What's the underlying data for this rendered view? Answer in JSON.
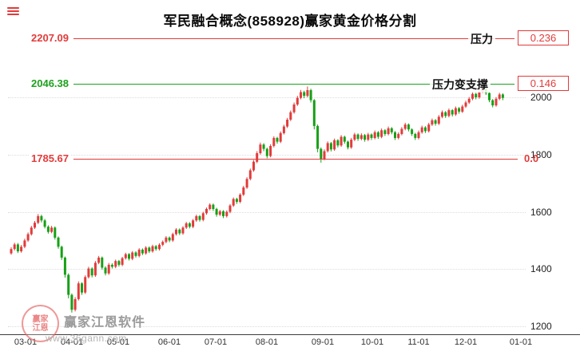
{
  "header": {
    "title": "军民融合概念(858928)赢家黄金价格分割"
  },
  "watermark": {
    "brand": "赢家江恩软件",
    "url": "www.36gann.com",
    "seal_top": "赢家",
    "seal_bottom": "江恩"
  },
  "chart_data": {
    "type": "candlestick",
    "title": "军民融合概念(858928)赢家黄金价格分割",
    "up_color": "#e23b3b",
    "down_color": "#16a016",
    "grid": true,
    "legend_position": "none",
    "ylim": [
      1170,
      2260
    ],
    "y_ticks": [
      "2000",
      "1800",
      "1600",
      "1400",
      "1200"
    ],
    "x_ticks": [
      "03-01",
      "04-01",
      "05-01",
      "06-01",
      "07-01",
      "08-01",
      "09-01",
      "10-01",
      "11-01",
      "12-01",
      "01-01"
    ],
    "levels": [
      {
        "price_label": "2207.09",
        "price": 2207.09,
        "side_label": "压力",
        "badge": "0.236",
        "color": "#e23b3b",
        "boxed": true
      },
      {
        "price_label": "2046.38",
        "price": 2046.38,
        "side_label": "压力变支撑",
        "badge": "0.146",
        "color": "#1da11d",
        "boxed": true
      },
      {
        "price_label": "1785.67",
        "price": 1785.67,
        "side_label": "",
        "badge": "0.0",
        "color": "#e23b3b",
        "boxed": false
      }
    ],
    "candles": [
      [
        1455,
        1476,
        1450,
        1470
      ],
      [
        1470,
        1492,
        1465,
        1486
      ],
      [
        1486,
        1491,
        1456,
        1462
      ],
      [
        1462,
        1484,
        1457,
        1478
      ],
      [
        1478,
        1506,
        1473,
        1500
      ],
      [
        1500,
        1528,
        1495,
        1522
      ],
      [
        1522,
        1551,
        1517,
        1545
      ],
      [
        1545,
        1568,
        1540,
        1562
      ],
      [
        1562,
        1592,
        1557,
        1585
      ],
      [
        1585,
        1590,
        1563,
        1570
      ],
      [
        1570,
        1575,
        1542,
        1548
      ],
      [
        1548,
        1553,
        1524,
        1530
      ],
      [
        1530,
        1551,
        1525,
        1545
      ],
      [
        1545,
        1549,
        1503,
        1510
      ],
      [
        1510,
        1514,
        1471,
        1478
      ],
      [
        1478,
        1482,
        1432,
        1440
      ],
      [
        1440,
        1444,
        1370,
        1380
      ],
      [
        1380,
        1385,
        1298,
        1310
      ],
      [
        1310,
        1315,
        1248,
        1258
      ],
      [
        1258,
        1302,
        1252,
        1295
      ],
      [
        1295,
        1357,
        1290,
        1350
      ],
      [
        1350,
        1354,
        1310,
        1318
      ],
      [
        1318,
        1378,
        1313,
        1372
      ],
      [
        1372,
        1408,
        1367,
        1402
      ],
      [
        1402,
        1406,
        1371,
        1378
      ],
      [
        1378,
        1428,
        1373,
        1422
      ],
      [
        1422,
        1446,
        1417,
        1440
      ],
      [
        1440,
        1444,
        1398,
        1405
      ],
      [
        1405,
        1410,
        1378,
        1385
      ],
      [
        1385,
        1421,
        1380,
        1415
      ],
      [
        1415,
        1420,
        1402,
        1408
      ],
      [
        1408,
        1433,
        1403,
        1428
      ],
      [
        1428,
        1432,
        1409,
        1415
      ],
      [
        1415,
        1443,
        1410,
        1438
      ],
      [
        1438,
        1457,
        1433,
        1452
      ],
      [
        1452,
        1456,
        1430,
        1436
      ],
      [
        1436,
        1463,
        1431,
        1458
      ],
      [
        1458,
        1462,
        1440,
        1446
      ],
      [
        1446,
        1473,
        1441,
        1468
      ],
      [
        1468,
        1472,
        1449,
        1455
      ],
      [
        1455,
        1480,
        1450,
        1475
      ],
      [
        1475,
        1479,
        1456,
        1462
      ],
      [
        1462,
        1485,
        1457,
        1480
      ],
      [
        1480,
        1484,
        1464,
        1470
      ],
      [
        1470,
        1490,
        1465,
        1485
      ],
      [
        1485,
        1500,
        1480,
        1495
      ],
      [
        1495,
        1515,
        1490,
        1510
      ],
      [
        1510,
        1514,
        1494,
        1500
      ],
      [
        1500,
        1527,
        1495,
        1522
      ],
      [
        1522,
        1543,
        1517,
        1538
      ],
      [
        1538,
        1542,
        1519,
        1525
      ],
      [
        1525,
        1550,
        1520,
        1545
      ],
      [
        1545,
        1565,
        1540,
        1560
      ],
      [
        1560,
        1564,
        1542,
        1548
      ],
      [
        1548,
        1575,
        1543,
        1570
      ],
      [
        1570,
        1590,
        1565,
        1585
      ],
      [
        1585,
        1589,
        1566,
        1572
      ],
      [
        1572,
        1600,
        1567,
        1595
      ],
      [
        1595,
        1615,
        1590,
        1610
      ],
      [
        1610,
        1630,
        1605,
        1625
      ],
      [
        1625,
        1629,
        1603,
        1610
      ],
      [
        1610,
        1614,
        1583,
        1590
      ],
      [
        1590,
        1607,
        1585,
        1602
      ],
      [
        1602,
        1606,
        1578,
        1585
      ],
      [
        1585,
        1605,
        1580,
        1600
      ],
      [
        1600,
        1627,
        1595,
        1622
      ],
      [
        1622,
        1650,
        1617,
        1645
      ],
      [
        1645,
        1649,
        1628,
        1635
      ],
      [
        1635,
        1665,
        1630,
        1660
      ],
      [
        1660,
        1691,
        1655,
        1685
      ],
      [
        1685,
        1721,
        1680,
        1715
      ],
      [
        1715,
        1751,
        1710,
        1745
      ],
      [
        1745,
        1781,
        1740,
        1775
      ],
      [
        1775,
        1812,
        1770,
        1805
      ],
      [
        1805,
        1842,
        1800,
        1835
      ],
      [
        1835,
        1840,
        1812,
        1820
      ],
      [
        1820,
        1824,
        1787,
        1795
      ],
      [
        1795,
        1836,
        1790,
        1830
      ],
      [
        1830,
        1864,
        1825,
        1858
      ],
      [
        1858,
        1862,
        1838,
        1845
      ],
      [
        1845,
        1881,
        1840,
        1875
      ],
      [
        1875,
        1904,
        1870,
        1898
      ],
      [
        1898,
        1928,
        1893,
        1922
      ],
      [
        1922,
        1954,
        1917,
        1948
      ],
      [
        1948,
        1982,
        1943,
        1975
      ],
      [
        1975,
        2005,
        1970,
        1998
      ],
      [
        1998,
        2026,
        1993,
        2018
      ],
      [
        2018,
        2023,
        1997,
        2005
      ],
      [
        2005,
        2038,
        2000,
        2025
      ],
      [
        2025,
        2030,
        1982,
        1990
      ],
      [
        1990,
        1994,
        1888,
        1900
      ],
      [
        1900,
        1905,
        1808,
        1820
      ],
      [
        1820,
        1825,
        1772,
        1785
      ],
      [
        1785,
        1818,
        1780,
        1812
      ],
      [
        1812,
        1846,
        1807,
        1840
      ],
      [
        1840,
        1844,
        1811,
        1818
      ],
      [
        1818,
        1856,
        1813,
        1850
      ],
      [
        1850,
        1854,
        1825,
        1832
      ],
      [
        1832,
        1868,
        1827,
        1862
      ],
      [
        1862,
        1866,
        1838,
        1845
      ],
      [
        1845,
        1849,
        1818,
        1825
      ],
      [
        1825,
        1858,
        1820,
        1852
      ],
      [
        1852,
        1876,
        1847,
        1870
      ],
      [
        1870,
        1874,
        1848,
        1855
      ],
      [
        1855,
        1874,
        1850,
        1868
      ],
      [
        1868,
        1872,
        1845,
        1852
      ],
      [
        1852,
        1876,
        1847,
        1870
      ],
      [
        1870,
        1874,
        1851,
        1858
      ],
      [
        1858,
        1884,
        1853,
        1878
      ],
      [
        1878,
        1882,
        1855,
        1862
      ],
      [
        1862,
        1891,
        1857,
        1885
      ],
      [
        1885,
        1889,
        1865,
        1872
      ],
      [
        1872,
        1898,
        1867,
        1892
      ],
      [
        1892,
        1896,
        1871,
        1878
      ],
      [
        1878,
        1882,
        1851,
        1858
      ],
      [
        1858,
        1878,
        1853,
        1872
      ],
      [
        1872,
        1896,
        1867,
        1890
      ],
      [
        1890,
        1911,
        1885,
        1905
      ],
      [
        1905,
        1909,
        1881,
        1888
      ],
      [
        1888,
        1892,
        1865,
        1872
      ],
      [
        1872,
        1876,
        1851,
        1858
      ],
      [
        1858,
        1884,
        1853,
        1878
      ],
      [
        1878,
        1901,
        1873,
        1895
      ],
      [
        1895,
        1899,
        1875,
        1882
      ],
      [
        1882,
        1911,
        1877,
        1905
      ],
      [
        1905,
        1926,
        1900,
        1920
      ],
      [
        1920,
        1924,
        1901,
        1908
      ],
      [
        1908,
        1938,
        1903,
        1932
      ],
      [
        1932,
        1954,
        1927,
        1948
      ],
      [
        1948,
        1952,
        1928,
        1935
      ],
      [
        1935,
        1961,
        1930,
        1955
      ],
      [
        1955,
        1959,
        1933,
        1940
      ],
      [
        1940,
        1968,
        1935,
        1962
      ],
      [
        1962,
        1966,
        1943,
        1950
      ],
      [
        1950,
        1974,
        1945,
        1968
      ],
      [
        1968,
        1988,
        1963,
        1982
      ],
      [
        1982,
        2001,
        1977,
        1995
      ],
      [
        1995,
        2018,
        1990,
        2012
      ],
      [
        2012,
        2016,
        1993,
        2000
      ],
      [
        2000,
        2026,
        1995,
        2020
      ],
      [
        2020,
        2042,
        2015,
        2035
      ],
      [
        2035,
        2039,
        2008,
        2015
      ],
      [
        2015,
        2019,
        1983,
        1990
      ],
      [
        1990,
        1994,
        1965,
        1972
      ],
      [
        1972,
        2001,
        1967,
        1995
      ],
      [
        1995,
        2016,
        1990,
        2010
      ],
      [
        2010,
        2014,
        1990,
        1998
      ]
    ]
  }
}
